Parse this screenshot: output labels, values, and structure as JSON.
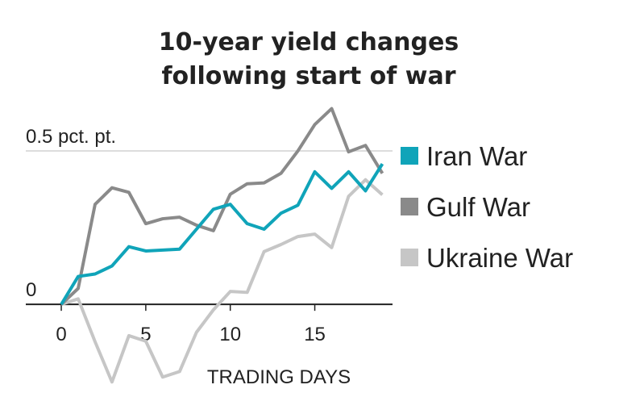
{
  "chart_data": {
    "type": "line",
    "title": [
      "10-year yield changes",
      "following start of war"
    ],
    "x_label": "TRADING DAYS",
    "x": [
      0,
      1,
      2,
      3,
      4,
      5,
      6,
      7,
      8,
      9,
      10,
      11,
      12,
      13,
      14,
      15,
      16,
      17,
      18,
      19
    ],
    "series": [
      {
        "name": "Iran War",
        "color": "#10a4b9",
        "values": [
          0,
          0.091,
          0.099,
          0.125,
          0.188,
          0.174,
          0.177,
          0.18,
          0.245,
          0.31,
          0.326,
          0.263,
          0.245,
          0.297,
          0.323,
          0.432,
          0.378,
          0.432,
          0.37,
          0.458
        ]
      },
      {
        "name": "Gulf War",
        "color": "#8a8a8a",
        "values": [
          0,
          0.052,
          0.326,
          0.38,
          0.365,
          0.263,
          0.279,
          0.284,
          0.258,
          0.24,
          0.359,
          0.393,
          0.396,
          0.427,
          0.5,
          0.586,
          0.638,
          0.497,
          0.518,
          0.427
        ]
      },
      {
        "name": "Ukraine War",
        "color": "#c6c6c6",
        "values": [
          0,
          0.018,
          -0.122,
          -0.253,
          -0.102,
          -0.12,
          -0.237,
          -0.219,
          -0.091,
          -0.018,
          0.042,
          0.039,
          0.172,
          0.195,
          0.221,
          0.229,
          0.185,
          0.352,
          0.406,
          0.357
        ]
      }
    ],
    "xlim": [
      -2.1,
      19.6
    ],
    "ylim": [
      -0.26,
      0.65
    ],
    "xticks": [
      0,
      5,
      10,
      15
    ],
    "yticks": [
      0,
      {
        "value": 0.5,
        "label": "0.5 pct. pt."
      }
    ],
    "grid": true,
    "legend": "right"
  }
}
